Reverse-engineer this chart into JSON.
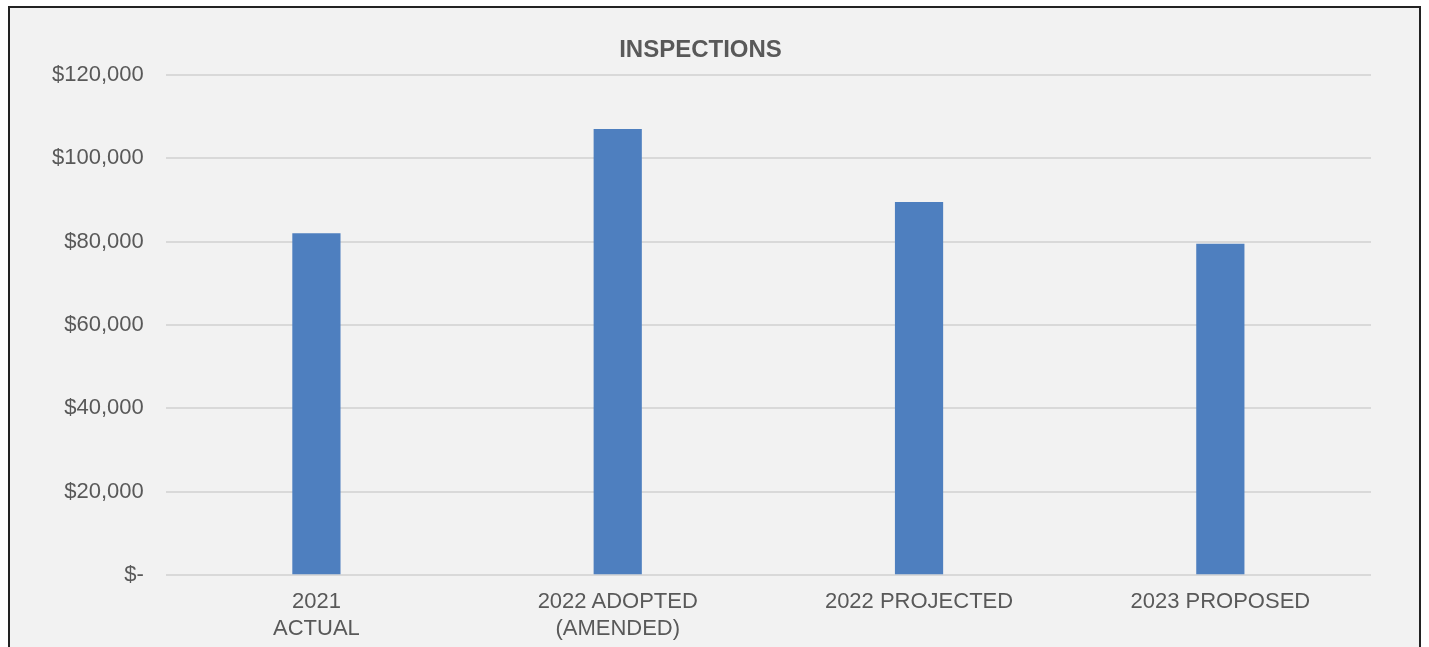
{
  "chart_data": {
    "type": "bar",
    "title": "INSPECTIONS",
    "categories": [
      "2021\nACTUAL",
      "2022 ADOPTED\n(AMENDED)",
      "2022 PROJECTED",
      "2023 PROPOSED"
    ],
    "values": [
      82000,
      107000,
      89500,
      79500
    ],
    "color": "#4e7fbf",
    "ylim": [
      0,
      120000
    ],
    "yticks": [
      {
        "value": 0,
        "label": "$-"
      },
      {
        "value": 20000,
        "label": "$20,000"
      },
      {
        "value": 40000,
        "label": "$40,000"
      },
      {
        "value": 60000,
        "label": "$60,000"
      },
      {
        "value": 80000,
        "label": "$80,000"
      },
      {
        "value": 100000,
        "label": "$100,000"
      },
      {
        "value": 120000,
        "label": "$120,000"
      }
    ],
    "grid": "y",
    "legend": false
  }
}
